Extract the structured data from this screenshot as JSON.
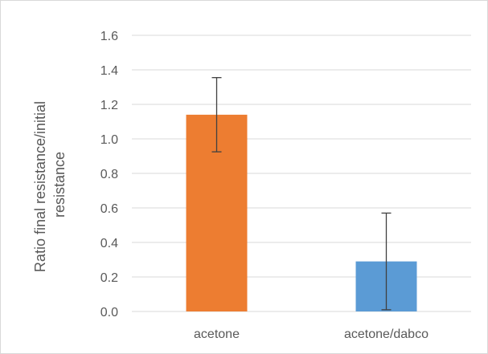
{
  "chart_data": {
    "type": "bar",
    "title": "",
    "xlabel": "",
    "ylabel": "Ratio final resistance/initial resistance",
    "ylabel_lines": [
      "Ratio final resistance/initial",
      "resistance"
    ],
    "categories": [
      "acetone",
      "acetone/dabco"
    ],
    "values": [
      1.14,
      0.29
    ],
    "error_bars": [
      0.215,
      0.28
    ],
    "bar_colors": [
      "#ED7D31",
      "#5B9BD5"
    ],
    "ylim": [
      0,
      1.6
    ],
    "yticks": [
      "0.0",
      "0.2",
      "0.4",
      "0.6",
      "0.8",
      "1.0",
      "1.2",
      "1.4",
      "1.6"
    ],
    "grid": true,
    "legend": "none"
  }
}
